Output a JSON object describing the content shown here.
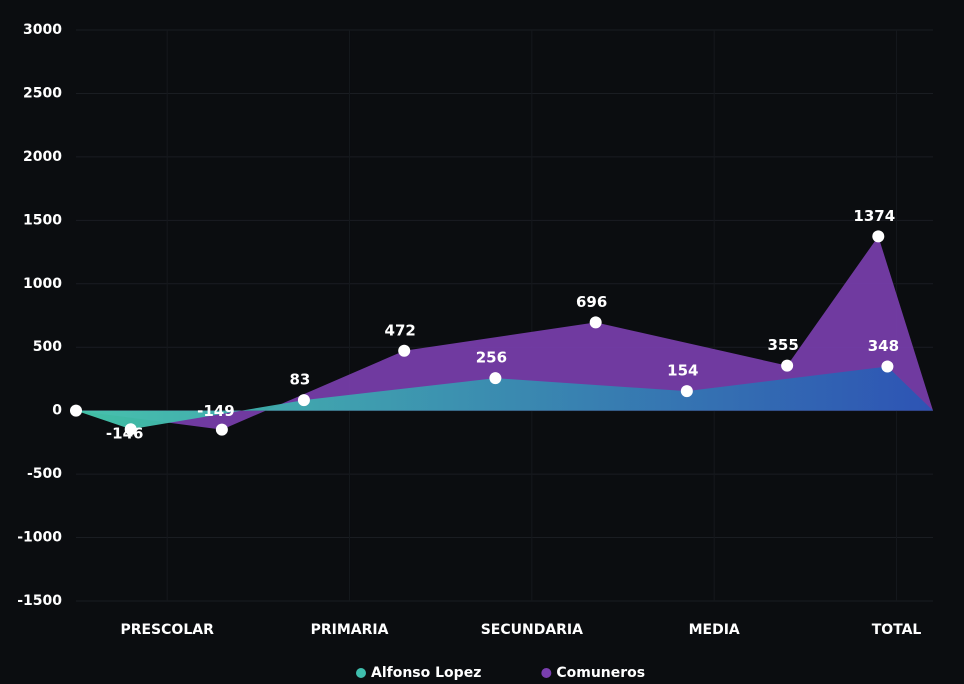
{
  "chart_data": {
    "type": "area",
    "xlim": [
      0,
      9.4
    ],
    "xticks": [
      {
        "value": 1,
        "label": "PRESCOLAR"
      },
      {
        "value": 3,
        "label": "PRIMARIA"
      },
      {
        "value": 5,
        "label": "SECUNDARIA"
      },
      {
        "value": 7,
        "label": "MEDIA"
      },
      {
        "value": 9,
        "label": "TOTAL"
      }
    ],
    "ylim": [
      -1500,
      3000
    ],
    "yticks": [
      -1500,
      -1000,
      -500,
      0,
      500,
      1000,
      1500,
      2000,
      2500,
      3000
    ],
    "grid": true,
    "legend": "bottom",
    "series": [
      {
        "name": "Comuneros",
        "color": "#7b3fb0",
        "x": [
          0,
          1.6,
          3.6,
          5.7,
          7.8,
          8.8,
          9.4
        ],
        "values": [
          0,
          -149,
          472,
          696,
          355,
          1374,
          0
        ]
      },
      {
        "name": "Alfonso Lopez",
        "color": "#3fbfae",
        "x": [
          0,
          0.6,
          2.5,
          4.6,
          6.7,
          8.9,
          9.4
        ],
        "values": [
          0,
          -146,
          83,
          256,
          154,
          348,
          0
        ]
      }
    ]
  }
}
